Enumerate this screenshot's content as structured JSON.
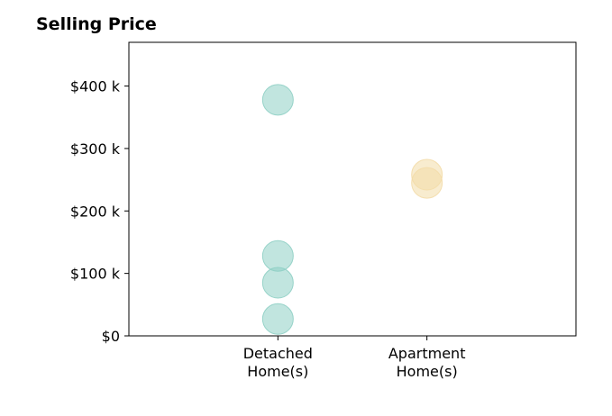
{
  "chart_data": {
    "type": "scatter",
    "title": "Selling Price",
    "xlabel": "",
    "ylabel": "",
    "categories": [
      "Detached\nHome(s)",
      "Apartment\nHome(s)"
    ],
    "y_ticks": [
      {
        "value": 0,
        "label": "$0"
      },
      {
        "value": 100000,
        "label": "$100 k"
      },
      {
        "value": 200000,
        "label": "$200 k"
      },
      {
        "value": 300000,
        "label": "$300 k"
      },
      {
        "value": 400000,
        "label": "$400 k"
      }
    ],
    "ylim": [
      0,
      470000
    ],
    "xlim": [
      -1,
      2
    ],
    "series": [
      {
        "category_index": 0,
        "color": "#8ecfc4",
        "values": [
          378000,
          128000,
          85000,
          27000
        ]
      },
      {
        "category_index": 1,
        "color": "#f3dca8",
        "values": [
          258000,
          245000
        ]
      }
    ],
    "grid": false,
    "legend": "none"
  }
}
